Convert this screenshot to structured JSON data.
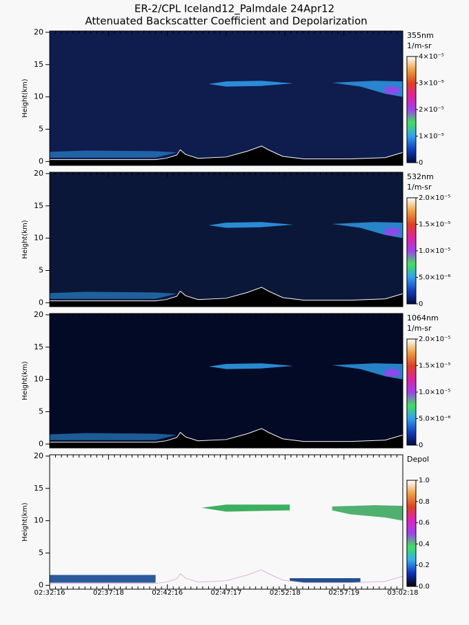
{
  "header": {
    "title": "ER-2/CPL Iceland12_Palmdale 24Apr12",
    "subtitle": "Attenuated Backscatter Coefficient and Depolarization"
  },
  "chart_data": [
    {
      "type": "curtain",
      "ylabel": "Height(km)",
      "ylim": [
        -0.6,
        20.2
      ],
      "yticks": [
        0,
        5,
        10,
        15,
        20
      ],
      "colorbar_title": [
        "355nm",
        "1/m-sr"
      ],
      "clim": [
        0,
        4e-05
      ],
      "cticks": [
        0,
        {
          "value": 1e-05,
          "label": "1×10⁻⁵"
        },
        {
          "value": 2e-05,
          "label": "2×10⁻⁵"
        },
        {
          "value": 3e-05,
          "label": "3×10⁻⁵"
        },
        {
          "value": 4e-05,
          "label": "4×10⁻⁵"
        }
      ],
      "colormap": [
        "#000a40",
        "#1040c0",
        "#30a0f0",
        "#40e060",
        "#a040f0",
        "#e020a0",
        "#e04020",
        "#f0a040",
        "#ffffff"
      ],
      "background": "#0f1c4e"
    },
    {
      "type": "curtain",
      "ylabel": "Height(km)",
      "ylim": [
        -0.6,
        20.2
      ],
      "yticks": [
        0,
        5,
        10,
        15,
        20
      ],
      "colorbar_title": [
        "532nm",
        "1/m-sr"
      ],
      "clim": [
        0,
        2e-05
      ],
      "cticks": [
        0,
        {
          "value": 5e-06,
          "label": "5.0×10⁻⁶"
        },
        {
          "value": 1e-05,
          "label": "1.0×10⁻⁵"
        },
        {
          "value": 1.5e-05,
          "label": "1.5×10⁻⁵"
        },
        {
          "value": 2e-05,
          "label": "2.0×10⁻⁵"
        }
      ],
      "colormap": [
        "#000a40",
        "#1040c0",
        "#30a0f0",
        "#40e060",
        "#a040f0",
        "#e020a0",
        "#e04020",
        "#f0a040",
        "#ffffff"
      ],
      "background": "#0b1739"
    },
    {
      "type": "curtain",
      "ylabel": "Height(km)",
      "ylim": [
        -0.6,
        20.2
      ],
      "yticks": [
        0,
        5,
        10,
        15,
        20
      ],
      "colorbar_title": [
        "1064nm",
        "1/m-sr"
      ],
      "clim": [
        0,
        2e-05
      ],
      "cticks": [
        0,
        {
          "value": 5e-06,
          "label": "5.0×10⁻⁶"
        },
        {
          "value": 1e-05,
          "label": "1.0×10⁻⁵"
        },
        {
          "value": 1.5e-05,
          "label": "1.5×10⁻⁵"
        },
        {
          "value": 2e-05,
          "label": "2.0×10⁻⁵"
        }
      ],
      "colormap": [
        "#000a40",
        "#1040c0",
        "#30a0f0",
        "#40e060",
        "#a040f0",
        "#e020a0",
        "#e04020",
        "#f0a040",
        "#ffffff"
      ],
      "background": "#030a26"
    },
    {
      "type": "curtain",
      "ylabel": "Height(km)",
      "ylim": [
        -0.6,
        20.2
      ],
      "yticks": [
        0,
        5,
        10,
        15,
        20
      ],
      "colorbar_title": [
        "Depol"
      ],
      "clim": [
        0,
        1
      ],
      "cticks": [
        {
          "value": 0,
          "label": "0.0"
        },
        0.2,
        0.4,
        0.6,
        0.8,
        {
          "value": 1,
          "label": "1.0"
        }
      ],
      "colormap": [
        "#000000",
        "#1030c0",
        "#30b0f0",
        "#40e060",
        "#a040f0",
        "#e020c0",
        "#e04020",
        "#f0a040",
        "#ffffff"
      ],
      "background": "#f8f8f8",
      "x": [
        "02:32:16",
        "02:37:18",
        "02:42:16",
        "02:47:17",
        "02:52:18",
        "02:57:19",
        "03:02:18"
      ]
    }
  ]
}
